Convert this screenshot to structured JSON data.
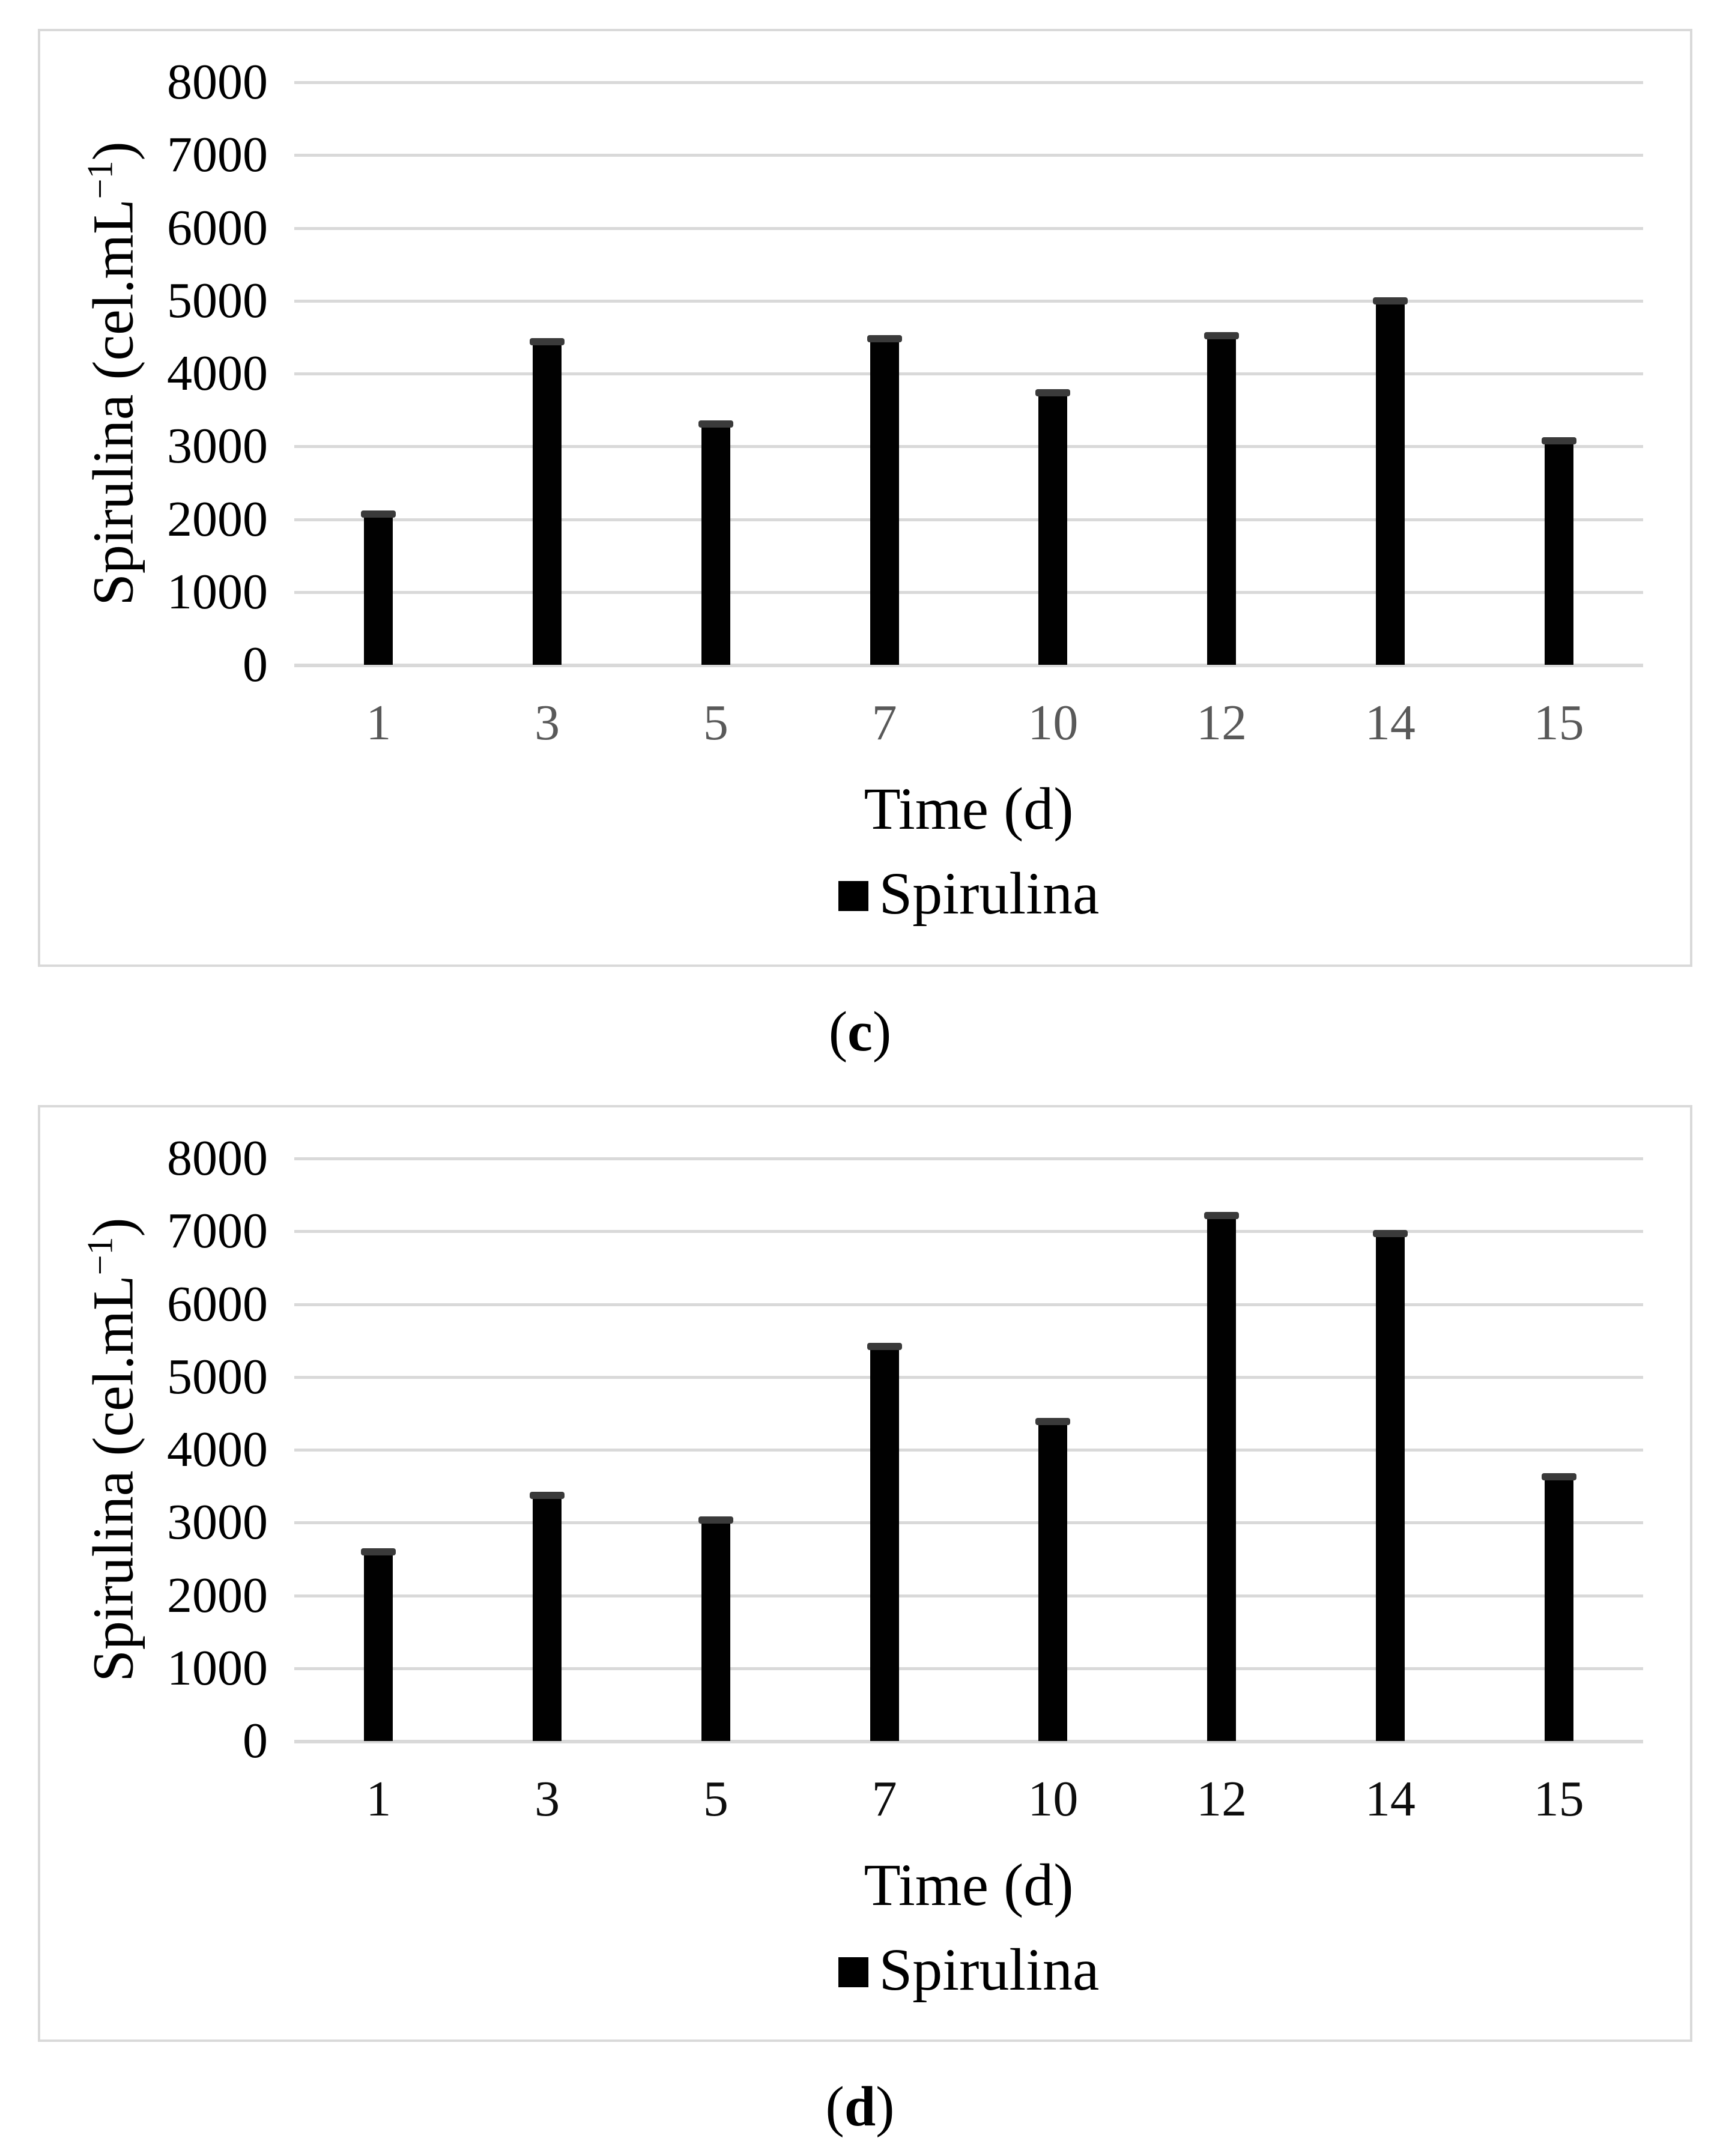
{
  "figure": {
    "background": "#ffffff",
    "panel_border_color": "#d9d9d9"
  },
  "chart_data": [
    {
      "type": "bar",
      "panel_caption": "(c)",
      "caption_open": "(",
      "caption_letter": "c",
      "caption_close": ")",
      "xlabel": "Time (d)",
      "ylabel": "Spirulina (cel.mL⁻¹)",
      "ylabel_main": "Spirulina (cel.mL",
      "ylabel_sup": "−1",
      "ylabel_close": ")",
      "legend_label": "Spirulina",
      "legend_position": "bottom",
      "legend_marker": "black-square",
      "categories": [
        "1",
        "3",
        "5",
        "7",
        "10",
        "12",
        "14",
        "15"
      ],
      "values": [
        2100,
        4470,
        3340,
        4510,
        3770,
        4550,
        5030,
        3110
      ],
      "ylim": [
        0,
        8000
      ],
      "y_tick_step": 1000,
      "y_ticks": [
        "8000",
        "7000",
        "6000",
        "5000",
        "4000",
        "3000",
        "2000",
        "1000",
        "0"
      ],
      "grid": true,
      "bar_color": "#010101",
      "bar_cap_color": "#3a3a3a",
      "gridline_color": "#d9d9d9",
      "x_tick_color": "#595959",
      "y_tick_color": "#000000"
    },
    {
      "type": "bar",
      "panel_caption": "(d)",
      "caption_open": "(",
      "caption_letter": "d",
      "caption_close": ")",
      "xlabel": "Time (d)",
      "ylabel": "Spirulina (cel.mL⁻¹)",
      "ylabel_main": "Spirulina (cel.mL",
      "ylabel_sup": "−1",
      "ylabel_close": ")",
      "legend_label": "Spirulina",
      "legend_position": "bottom",
      "legend_marker": "black-square",
      "categories": [
        "1",
        "3",
        "5",
        "7",
        "10",
        "12",
        "14",
        "15"
      ],
      "values": [
        2630,
        3410,
        3070,
        5450,
        4420,
        7250,
        7000,
        3660
      ],
      "ylim": [
        0,
        8000
      ],
      "y_tick_step": 1000,
      "y_ticks": [
        "8000",
        "7000",
        "6000",
        "5000",
        "4000",
        "3000",
        "2000",
        "1000",
        "0"
      ],
      "grid": true,
      "bar_color": "#010101",
      "bar_cap_color": "#3a3a3a",
      "gridline_color": "#d9d9d9",
      "x_tick_color": "#0d0d0d",
      "y_tick_color": "#000000"
    }
  ]
}
